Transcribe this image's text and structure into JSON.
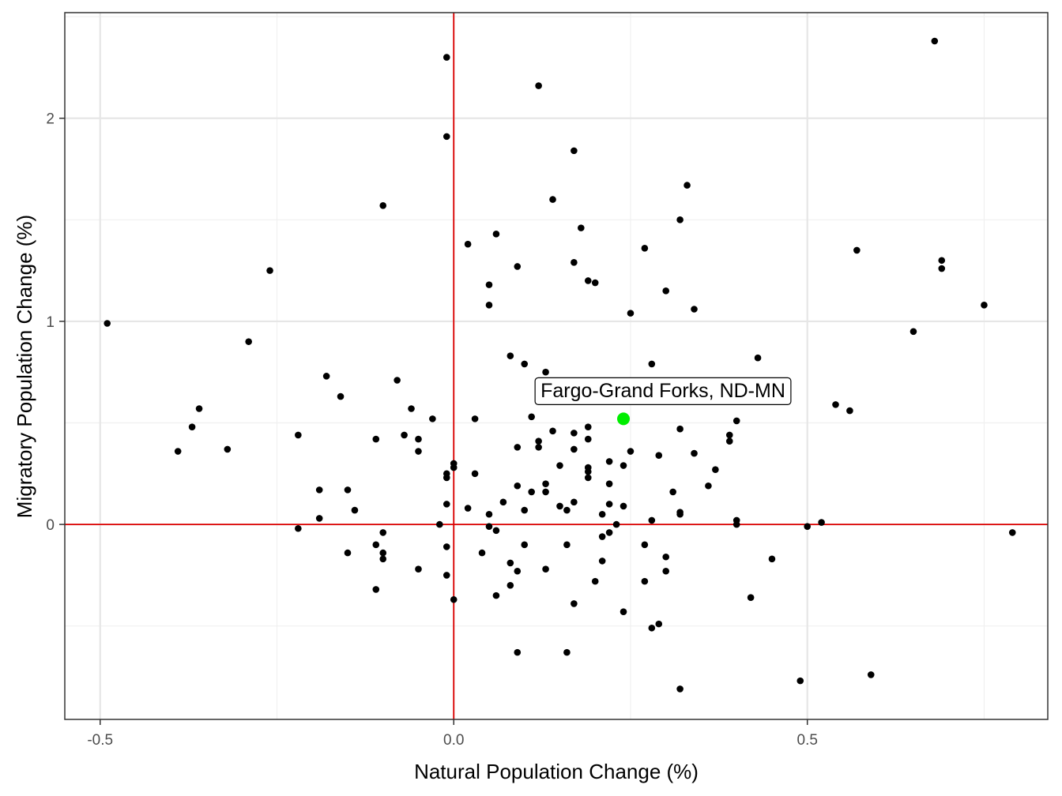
{
  "chart_data": {
    "type": "scatter",
    "title": "",
    "xlabel": "Natural Population Change (%)",
    "ylabel": "Migratory Population Change (%)",
    "xlim": [
      -0.55,
      0.84
    ],
    "ylim": [
      -0.96,
      2.52
    ],
    "x_ticks": [
      {
        "value": -0.5,
        "label": "-0.5"
      },
      {
        "value": 0.0,
        "label": "0.0"
      },
      {
        "value": 0.5,
        "label": "0.5"
      }
    ],
    "y_ticks": [
      {
        "value": 0,
        "label": "0"
      },
      {
        "value": 1,
        "label": "1"
      },
      {
        "value": 2,
        "label": "2"
      }
    ],
    "grid": true,
    "reference_lines": {
      "x": 0,
      "y": 0,
      "color": "#dd0000"
    },
    "point_color": "#000000",
    "highlight": {
      "label": "Fargo-Grand Forks, ND-MN",
      "x": 0.24,
      "y": 0.52,
      "color": "#00ee00"
    },
    "points": [
      [
        -0.49,
        0.99
      ],
      [
        -0.39,
        0.36
      ],
      [
        -0.37,
        0.48
      ],
      [
        -0.36,
        0.57
      ],
      [
        -0.32,
        0.37
      ],
      [
        -0.29,
        0.9
      ],
      [
        -0.26,
        1.25
      ],
      [
        -0.22,
        0.44
      ],
      [
        -0.22,
        -0.02
      ],
      [
        -0.19,
        0.17
      ],
      [
        -0.19,
        0.03
      ],
      [
        -0.18,
        0.73
      ],
      [
        -0.16,
        0.63
      ],
      [
        -0.15,
        0.17
      ],
      [
        -0.15,
        -0.14
      ],
      [
        -0.14,
        0.07
      ],
      [
        -0.11,
        0.42
      ],
      [
        -0.11,
        -0.1
      ],
      [
        -0.11,
        -0.32
      ],
      [
        -0.1,
        1.57
      ],
      [
        -0.1,
        -0.04
      ],
      [
        -0.1,
        -0.14
      ],
      [
        -0.1,
        -0.17
      ],
      [
        -0.08,
        0.71
      ],
      [
        -0.07,
        0.44
      ],
      [
        -0.06,
        0.57
      ],
      [
        -0.05,
        0.42
      ],
      [
        -0.05,
        0.36
      ],
      [
        -0.05,
        -0.22
      ],
      [
        -0.03,
        0.52
      ],
      [
        -0.02,
        0.0
      ],
      [
        -0.01,
        2.3
      ],
      [
        -0.01,
        1.91
      ],
      [
        -0.01,
        0.25
      ],
      [
        -0.01,
        0.23
      ],
      [
        -0.01,
        0.1
      ],
      [
        -0.01,
        -0.11
      ],
      [
        -0.01,
        -0.25
      ],
      [
        0.0,
        0.3
      ],
      [
        0.0,
        0.28
      ],
      [
        0.0,
        -0.37
      ],
      [
        0.02,
        1.38
      ],
      [
        0.02,
        0.08
      ],
      [
        0.03,
        0.52
      ],
      [
        0.03,
        0.25
      ],
      [
        0.04,
        -0.14
      ],
      [
        0.05,
        1.18
      ],
      [
        0.05,
        1.08
      ],
      [
        0.05,
        0.05
      ],
      [
        0.05,
        -0.01
      ],
      [
        0.06,
        1.43
      ],
      [
        0.06,
        -0.03
      ],
      [
        0.06,
        -0.35
      ],
      [
        0.07,
        0.11
      ],
      [
        0.08,
        0.83
      ],
      [
        0.08,
        -0.19
      ],
      [
        0.08,
        -0.3
      ],
      [
        0.09,
        1.27
      ],
      [
        0.09,
        0.38
      ],
      [
        0.09,
        0.19
      ],
      [
        0.09,
        -0.23
      ],
      [
        0.09,
        -0.63
      ],
      [
        0.1,
        0.79
      ],
      [
        0.1,
        0.07
      ],
      [
        0.1,
        -0.1
      ],
      [
        0.11,
        0.53
      ],
      [
        0.11,
        0.16
      ],
      [
        0.12,
        2.16
      ],
      [
        0.12,
        0.41
      ],
      [
        0.12,
        0.38
      ],
      [
        0.13,
        0.75
      ],
      [
        0.13,
        0.2
      ],
      [
        0.13,
        0.16
      ],
      [
        0.13,
        -0.22
      ],
      [
        0.14,
        1.6
      ],
      [
        0.14,
        0.46
      ],
      [
        0.15,
        0.29
      ],
      [
        0.15,
        0.09
      ],
      [
        0.16,
        0.07
      ],
      [
        0.16,
        -0.1
      ],
      [
        0.16,
        -0.63
      ],
      [
        0.17,
        1.84
      ],
      [
        0.17,
        1.29
      ],
      [
        0.17,
        0.45
      ],
      [
        0.17,
        0.37
      ],
      [
        0.17,
        0.11
      ],
      [
        0.17,
        -0.39
      ],
      [
        0.18,
        1.46
      ],
      [
        0.19,
        1.2
      ],
      [
        0.19,
        0.48
      ],
      [
        0.19,
        0.42
      ],
      [
        0.19,
        0.28
      ],
      [
        0.19,
        0.26
      ],
      [
        0.19,
        0.23
      ],
      [
        0.2,
        1.19
      ],
      [
        0.2,
        -0.28
      ],
      [
        0.21,
        0.05
      ],
      [
        0.21,
        -0.06
      ],
      [
        0.21,
        -0.18
      ],
      [
        0.22,
        0.31
      ],
      [
        0.22,
        0.2
      ],
      [
        0.22,
        0.1
      ],
      [
        0.22,
        -0.04
      ],
      [
        0.23,
        0.0
      ],
      [
        0.24,
        0.29
      ],
      [
        0.24,
        0.09
      ],
      [
        0.24,
        -0.43
      ],
      [
        0.25,
        1.04
      ],
      [
        0.25,
        0.36
      ],
      [
        0.27,
        1.36
      ],
      [
        0.27,
        -0.1
      ],
      [
        0.27,
        -0.28
      ],
      [
        0.28,
        0.79
      ],
      [
        0.28,
        0.02
      ],
      [
        0.28,
        -0.51
      ],
      [
        0.29,
        0.34
      ],
      [
        0.29,
        -0.49
      ],
      [
        0.3,
        1.15
      ],
      [
        0.3,
        -0.16
      ],
      [
        0.3,
        -0.23
      ],
      [
        0.31,
        0.16
      ],
      [
        0.32,
        1.5
      ],
      [
        0.32,
        0.47
      ],
      [
        0.32,
        0.06
      ],
      [
        0.32,
        0.05
      ],
      [
        0.32,
        -0.81
      ],
      [
        0.33,
        1.67
      ],
      [
        0.34,
        1.06
      ],
      [
        0.34,
        0.35
      ],
      [
        0.36,
        0.19
      ],
      [
        0.37,
        0.27
      ],
      [
        0.39,
        0.44
      ],
      [
        0.39,
        0.41
      ],
      [
        0.4,
        0.51
      ],
      [
        0.4,
        0.02
      ],
      [
        0.4,
        0.0
      ],
      [
        0.42,
        -0.36
      ],
      [
        0.43,
        0.82
      ],
      [
        0.45,
        -0.17
      ],
      [
        0.49,
        -0.77
      ],
      [
        0.5,
        -0.01
      ],
      [
        0.52,
        0.01
      ],
      [
        0.54,
        0.59
      ],
      [
        0.56,
        0.56
      ],
      [
        0.57,
        1.35
      ],
      [
        0.59,
        -0.74
      ],
      [
        0.65,
        0.95
      ],
      [
        0.68,
        2.38
      ],
      [
        0.69,
        1.3
      ],
      [
        0.69,
        1.26
      ],
      [
        0.75,
        1.08
      ],
      [
        0.79,
        -0.04
      ]
    ]
  }
}
